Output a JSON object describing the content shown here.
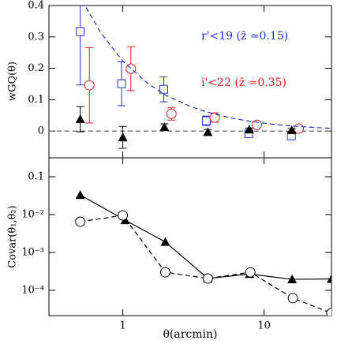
{
  "chart_data": [
    {
      "type": "errorbar",
      "ylabel": "wGQ(θ)",
      "log_x": true,
      "xlim": [
        0.3,
        30
      ],
      "xticks": [
        1,
        10
      ],
      "ylim": [
        -0.085,
        0.4
      ],
      "yticks": [
        0,
        0.1,
        0.2,
        0.3,
        0.4
      ],
      "hline": 0,
      "hline_color": "#777777",
      "series": [
        {
          "name": "r'<19 (z̄ ≃0.15)",
          "color": "#2233cc",
          "marker": "square",
          "line": "none",
          "x": [
            0.5,
            0.98,
            1.95,
            3.9,
            7.8,
            15.6
          ],
          "values": [
            0.317,
            0.151,
            0.133,
            0.033,
            -0.008,
            -0.015
          ],
          "errors": [
            0.17,
            0.07,
            0.04,
            0.015,
            0.012,
            0.012
          ]
        },
        {
          "name": "i'<22 (z̄ ≃0.35)",
          "color": "#dd2222",
          "marker": "circle",
          "line": "none",
          "x": [
            0.58,
            1.14,
            2.21,
            4.47,
            8.9,
            17.6
          ],
          "values": [
            0.146,
            0.199,
            0.055,
            0.043,
            0.02,
            0.008
          ],
          "errors": [
            0.12,
            0.07,
            0.02,
            0.015,
            0.01,
            0.008
          ]
        },
        {
          "color": "#000000",
          "marker": "triangle",
          "line": "none",
          "x": [
            0.5,
            1,
            1.97,
            4,
            7.85,
            15.7
          ],
          "values": [
            0.038,
            -0.02,
            0.013,
            -0.003,
            0.005,
            0.003
          ],
          "errors": [
            0.04,
            0.035,
            0.01,
            0.008,
            0.005,
            0.005
          ]
        },
        {
          "color": "#2233cc",
          "marker": "none",
          "line": "dashed",
          "x": [
            0.55,
            0.7,
            1,
            1.5,
            2,
            3,
            4,
            6,
            8,
            12,
            16,
            24,
            30
          ],
          "values": [
            0.394,
            0.313,
            0.223,
            0.152,
            0.115,
            0.0785,
            0.0598,
            0.0407,
            0.031,
            0.0211,
            0.016,
            0.0109,
            0.0088
          ]
        }
      ]
    },
    {
      "type": "line",
      "ylabel": "Covar(θ₁,θ₂)",
      "xlabel": "θ(arcmin)",
      "log_x": true,
      "log_y": true,
      "xlim": [
        0.3,
        30
      ],
      "xticks": [
        1,
        10
      ],
      "ylim": [
        2.15e-05,
        0.316
      ],
      "yticks": [
        {
          "value": 0.0001,
          "label": "10⁻⁴"
        },
        {
          "value": 0.001,
          "label": "10⁻³"
        },
        {
          "value": 0.01,
          "label": "10⁻²"
        },
        {
          "value": 0.1,
          "label": "0.1"
        }
      ],
      "series": [
        {
          "color": "#000000",
          "marker": "triangle",
          "line": "solid",
          "x": [
            0.5,
            1.04,
            2,
            4,
            7.9,
            15.8,
            30
          ],
          "values": [
            0.033,
            0.0071,
            0.0019,
            0.000205,
            0.00027,
            0.000195,
            0.0002
          ]
        },
        {
          "color": "#000000",
          "marker": "circle",
          "line": "dashed",
          "x": [
            0.5,
            1,
            2,
            4,
            8,
            16,
            30
          ],
          "values": [
            0.0065,
            0.0095,
            0.0003,
            0.000205,
            0.0003,
            6.2e-05,
            2.5e-05
          ]
        }
      ]
    }
  ]
}
